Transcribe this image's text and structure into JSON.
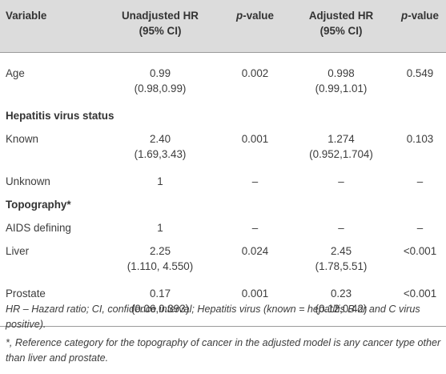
{
  "table": {
    "headers": {
      "variable": "Variable",
      "unadjusted_line1": "Unadjusted HR",
      "unadjusted_line2": "(95% CI)",
      "pvalue1_italic": "p",
      "pvalue1_rest": "-value",
      "adjusted_line1": "Adjusted HR",
      "adjusted_line2": "(95% CI)",
      "pvalue2_italic": "p",
      "pvalue2_rest": "-value"
    },
    "rows": [
      {
        "variable": "Age",
        "unadj_hr": "0.99",
        "unadj_ci": "(0.98,0.99)",
        "p1": "0.002",
        "adj_hr": "0.998",
        "adj_ci": "(0.99,1.01)",
        "p2": "0.549"
      },
      {
        "section": "Hepatitis virus status"
      },
      {
        "variable": "Known",
        "unadj_hr": "2.40",
        "unadj_ci": "(1.69,3.43)",
        "p1": "0.001",
        "adj_hr": "1.274",
        "adj_ci": "(0.952,1.704)",
        "p2": "0.103"
      },
      {
        "variable": "Unknown",
        "unadj_hr": "1",
        "p1": "–",
        "adj_hr": "–",
        "p2": "–"
      },
      {
        "section": "Topography*"
      },
      {
        "variable": "AIDS defining",
        "unadj_hr": "1",
        "p1": "–",
        "adj_hr": "–",
        "p2": "–"
      },
      {
        "variable": "Liver",
        "unadj_hr": "2.25",
        "unadj_ci": "(1.110, 4.550)",
        "p1": "0.024",
        "adj_hr": "2.45",
        "adj_ci": "(1.78,5.51)",
        "p2": "<0.001"
      },
      {
        "variable": "Prostate",
        "unadj_hr": "0.17",
        "unadj_ci": "(0.06,0.393)",
        "p1": "0.001",
        "adj_hr": "0.23",
        "adj_ci": "(0.12,0.42)",
        "p2": "<0.001"
      }
    ]
  },
  "footnotes": {
    "note1": "HR – Hazard ratio; CI, confidence interval; Hepatitis virus (known = hepatitis B or and C virus positive).",
    "note2": "*, Reference category for the topography of cancer in the adjusted model is any cancer type other than liver and prostate."
  }
}
